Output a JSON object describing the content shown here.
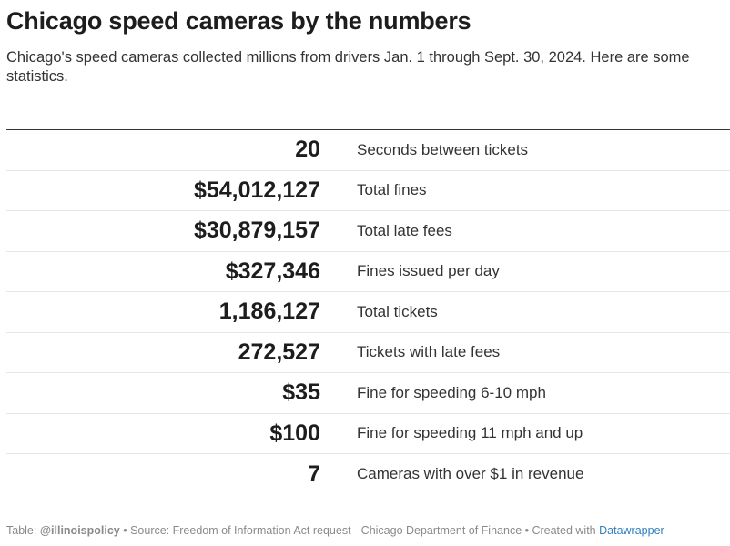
{
  "header": {
    "title": "Chicago speed cameras by the numbers",
    "subtitle": "Chicago's speed cameras collected millions from drivers Jan. 1 through Sept. 30, 2024. Here are some statistics."
  },
  "chart_data": {
    "type": "table",
    "columns": [
      "value",
      "statistic"
    ],
    "rows": [
      {
        "value": "20",
        "label": "Seconds between tickets"
      },
      {
        "value": "$54,012,127",
        "label": "Total fines"
      },
      {
        "value": "$30,879,157",
        "label": "Total late fees"
      },
      {
        "value": "$327,346",
        "label": "Fines issued per day"
      },
      {
        "value": "1,186,127",
        "label": "Total tickets"
      },
      {
        "value": "272,527",
        "label": "Tickets with late fees"
      },
      {
        "value": "$35",
        "label": "Fine for speeding 6-10 mph"
      },
      {
        "value": "$100",
        "label": "Fine for speeding 11 mph and up"
      },
      {
        "value": "7",
        "label": "Cameras with over $1 in revenue"
      }
    ]
  },
  "footer": {
    "table_prefix": "Table: ",
    "handle": "@illinoispolicy",
    "source": " • Source: Freedom of Information Act request - Chicago Department of Finance • Created with ",
    "created_with": "Datawrapper"
  },
  "colors": {
    "text": "#1d1d1d",
    "muted": "#8a8a8a",
    "link": "#2f7fbf",
    "rule": "#333333",
    "row_divider": "#e6e6e6"
  }
}
